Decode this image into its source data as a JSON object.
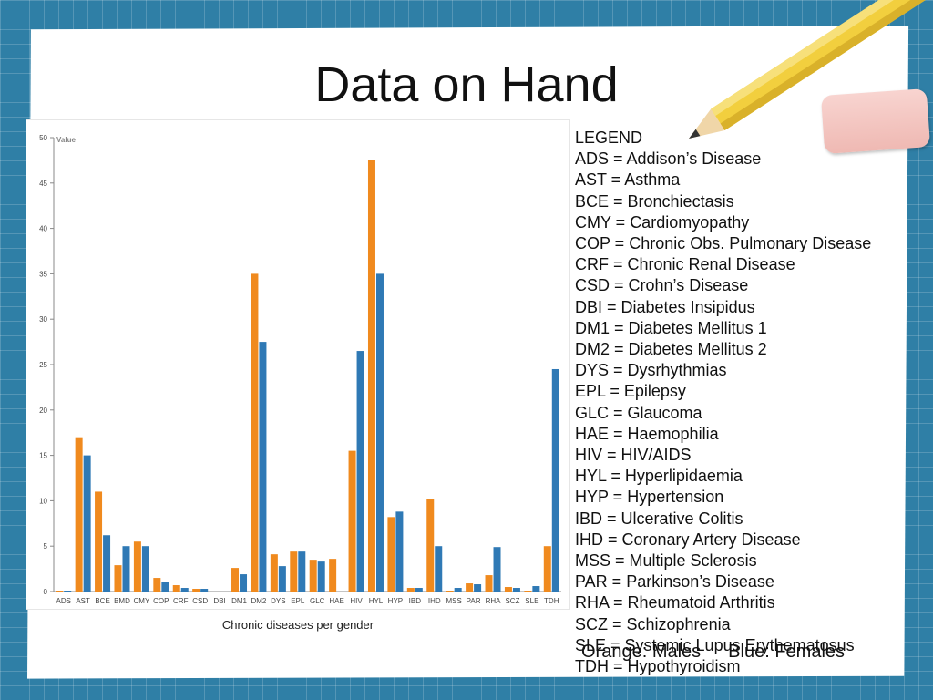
{
  "slide": {
    "title": "Data on Hand",
    "gender_note": {
      "orange": "Orange: Males",
      "blue": "Blue: Females"
    }
  },
  "colors": {
    "males": "#f08a1e",
    "females": "#2f79b5"
  },
  "icons": [
    "pencil-icon",
    "eraser-icon"
  ],
  "chart_data": {
    "type": "bar",
    "xlabel": "Chronic diseases per gender",
    "ylabel": "Value",
    "ylim": [
      0,
      50
    ],
    "yticks": [
      0,
      5,
      10,
      15,
      20,
      25,
      30,
      35,
      40,
      45,
      50
    ],
    "grid": false,
    "categories": [
      "ADS",
      "AST",
      "BCE",
      "BMD",
      "CMY",
      "COP",
      "CRF",
      "CSD",
      "DBI",
      "DM1",
      "DM2",
      "DYS",
      "EPL",
      "GLC",
      "HAE",
      "HIV",
      "HYL",
      "HYP",
      "IBD",
      "IHD",
      "MSS",
      "PAR",
      "RHA",
      "SCZ",
      "SLE",
      "TDH"
    ],
    "series": [
      {
        "color": "#f08a1e",
        "values": [
          0.1,
          17,
          11,
          2.9,
          5.5,
          1.5,
          0.7,
          0.3,
          0,
          2.6,
          35,
          4.1,
          4.4,
          3.5,
          3.6,
          15.5,
          47.5,
          8.2,
          0.4,
          10.2,
          0.1,
          0.9,
          1.8,
          0.5,
          0.1,
          5
        ]
      },
      {
        "color": "#2f79b5",
        "values": [
          0.1,
          15,
          6.2,
          5,
          5,
          1.1,
          0.4,
          0.3,
          0,
          1.9,
          27.5,
          2.8,
          4.4,
          3.3,
          0,
          26.5,
          35,
          8.8,
          0.4,
          5,
          0.4,
          0.8,
          4.9,
          0.4,
          0.6,
          24.5
        ]
      }
    ]
  },
  "legend": {
    "title": "LEGEND",
    "items": [
      "ADS = Addison’s Disease",
      "AST = Asthma",
      "BCE = Bronchiectasis",
      "CMY = Cardiomyopathy",
      "COP = Chronic Obs. Pulmonary Disease",
      "CRF = Chronic Renal Disease",
      "CSD = Crohn’s Disease",
      "DBI = Diabetes Insipidus",
      "DM1 = Diabetes Mellitus 1",
      "DM2 = Diabetes Mellitus 2",
      "DYS = Dysrhythmias",
      "EPL = Epilepsy",
      "GLC = Glaucoma",
      "HAE = Haemophilia",
      "HIV = HIV/AIDS",
      "HYL = Hyperlipidaemia",
      "HYP = Hypertension",
      "IBD = Ulcerative Colitis",
      "IHD = Coronary Artery Disease",
      "MSS = Multiple Sclerosis",
      "PAR = Parkinson’s Disease",
      "RHA = Rheumatoid Arthritis",
      "SCZ = Schizophrenia",
      "SLE = Systemic Lupus Erythematosus",
      "TDH = Hypothyroidism"
    ]
  }
}
